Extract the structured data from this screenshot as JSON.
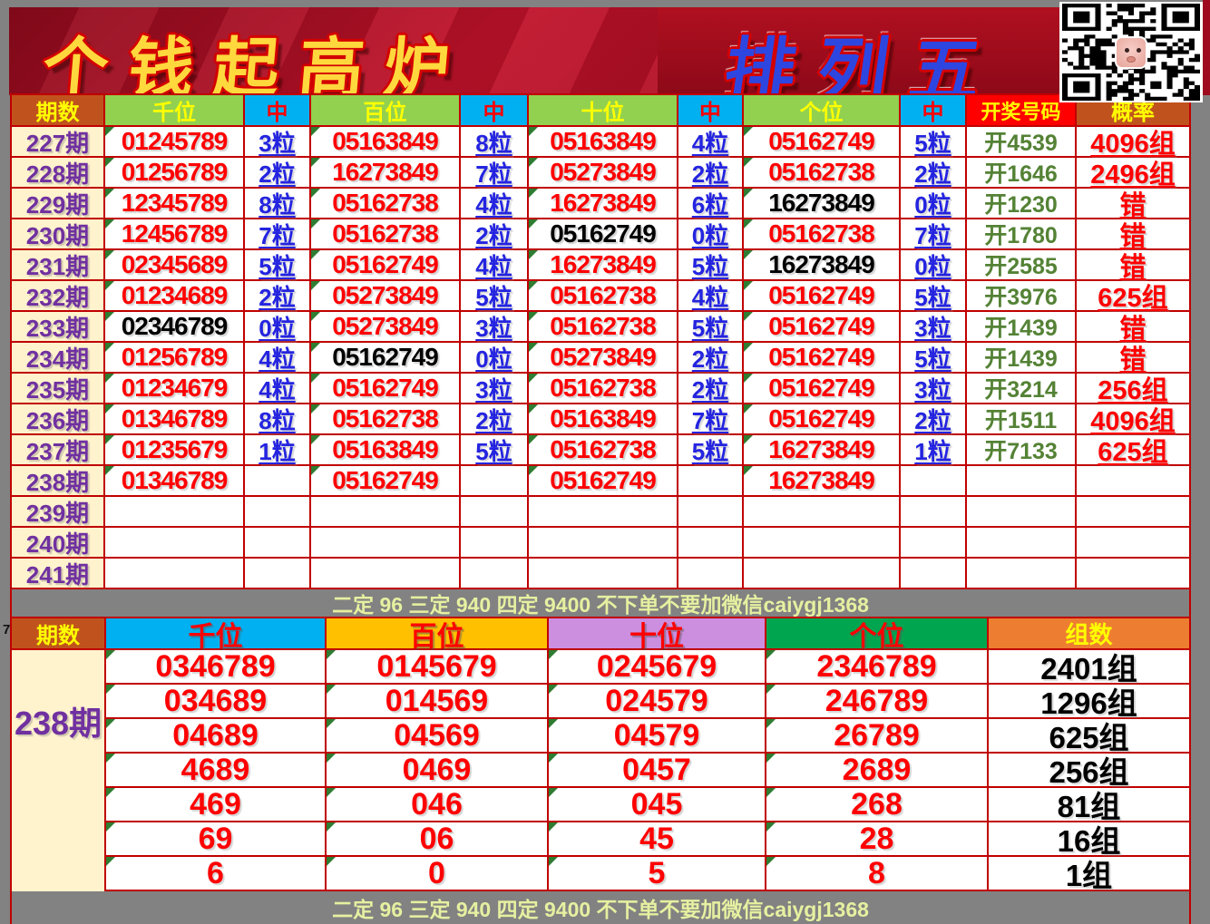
{
  "banner": {
    "title_left": "个钱起高炉",
    "title_right": "排列五"
  },
  "margin_row_number": "7",
  "promo_text": "二定 96 三定 940 四定 9400 不下单不要加微信caiygj1368",
  "colors": {
    "page_bg": "#828282",
    "banner_red": "#c0122a",
    "grid_border": "#c00000",
    "header_green": "#92d050",
    "header_blue": "#00b0f0",
    "header_brown": "#c0531d",
    "header_red": "#ff0000",
    "header_amber": "#ffc000",
    "header_plum": "#cc8fe0",
    "header_dark_green": "#00a64f",
    "header_orange": "#ed7d31",
    "period_bg": "#fff3cd",
    "period_text": "#7030a0",
    "number_red": "#ff0000",
    "number_black": "#000000",
    "hit_blue": "#2424e0",
    "draw_green": "#548235",
    "promo_text_color": "#e6f0a0"
  },
  "chart_data": [
    {
      "type": "table",
      "columns": [
        "期数",
        "千位",
        "中",
        "百位",
        "中",
        "十位",
        "中",
        "个位",
        "中",
        "开奖号码",
        "概率"
      ],
      "rows": [
        {
          "p": "227期",
          "c": [
            "01245789",
            "3粒",
            "05163849",
            "8粒",
            "05163849",
            "4粒",
            "05162749",
            "5粒",
            "开4539",
            "4096组"
          ],
          "k": "rhrhrhrhdp"
        },
        {
          "p": "228期",
          "c": [
            "01256789",
            "2粒",
            "16273849",
            "7粒",
            "05273849",
            "2粒",
            "05162738",
            "2粒",
            "开1646",
            "2496组"
          ],
          "k": "rhrhrhrhdp"
        },
        {
          "p": "229期",
          "c": [
            "12345789",
            "8粒",
            "05162738",
            "4粒",
            "16273849",
            "6粒",
            "16273849",
            "0粒",
            "开1230",
            "错"
          ],
          "k": "rhrhrhbhdp"
        },
        {
          "p": "230期",
          "c": [
            "12456789",
            "7粒",
            "05162738",
            "2粒",
            "05162749",
            "0粒",
            "05162738",
            "7粒",
            "开1780",
            "错"
          ],
          "k": "rhrhbhrhdp"
        },
        {
          "p": "231期",
          "c": [
            "02345689",
            "5粒",
            "05162749",
            "4粒",
            "16273849",
            "5粒",
            "16273849",
            "0粒",
            "开2585",
            "错"
          ],
          "k": "rhrhrhbhdp"
        },
        {
          "p": "232期",
          "c": [
            "01234689",
            "2粒",
            "05273849",
            "5粒",
            "05162738",
            "4粒",
            "05162749",
            "5粒",
            "开3976",
            "625组"
          ],
          "k": "rhrhrhrhdp"
        },
        {
          "p": "233期",
          "c": [
            "02346789",
            "0粒",
            "05273849",
            "3粒",
            "05162738",
            "5粒",
            "05162749",
            "3粒",
            "开1439",
            "错"
          ],
          "k": "bhrhrhrhdp"
        },
        {
          "p": "234期",
          "c": [
            "01256789",
            "4粒",
            "05162749",
            "0粒",
            "05273849",
            "2粒",
            "05162749",
            "5粒",
            "开1439",
            "错"
          ],
          "k": "rhbhrhrhdp"
        },
        {
          "p": "235期",
          "c": [
            "01234679",
            "4粒",
            "05162749",
            "3粒",
            "05162738",
            "2粒",
            "05162749",
            "3粒",
            "开3214",
            "256组"
          ],
          "k": "rhrhrhrhdp"
        },
        {
          "p": "236期",
          "c": [
            "01346789",
            "8粒",
            "05162738",
            "2粒",
            "05163849",
            "7粒",
            "05162749",
            "2粒",
            "开1511",
            "4096组"
          ],
          "k": "rhrhrhrhdp"
        },
        {
          "p": "237期",
          "c": [
            "01235679",
            "1粒",
            "05163849",
            "5粒",
            "05162738",
            "5粒",
            "16273849",
            "1粒",
            "开7133",
            "625组"
          ],
          "k": "rhrhrhrhdp"
        },
        {
          "p": "238期",
          "c": [
            "01346789",
            "",
            "05162749",
            "",
            "05162749",
            "",
            "16273849",
            "",
            "",
            ""
          ],
          "k": "rererereee"
        },
        {
          "p": "239期",
          "c": [
            "",
            "",
            "",
            "",
            "",
            "",
            "",
            "",
            "",
            ""
          ],
          "k": "eeeeeeeeee"
        },
        {
          "p": "240期",
          "c": [
            "",
            "",
            "",
            "",
            "",
            "",
            "",
            "",
            "",
            ""
          ],
          "k": "eeeeeeeeee"
        },
        {
          "p": "241期",
          "c": [
            "",
            "",
            "",
            "",
            "",
            "",
            "",
            "",
            "",
            ""
          ],
          "k": "eeeeeeeeee"
        }
      ]
    },
    {
      "type": "table",
      "columns": [
        "期数",
        "千位",
        "百位",
        "十位",
        "个位",
        "组数"
      ],
      "period": "238期",
      "rows": [
        [
          "0346789",
          "0145679",
          "0245679",
          "2346789",
          "2401组"
        ],
        [
          "034689",
          "014569",
          "024579",
          "246789",
          "1296组"
        ],
        [
          "04689",
          "04569",
          "04579",
          "26789",
          "625组"
        ],
        [
          "4689",
          "0469",
          "0457",
          "2689",
          "256组"
        ],
        [
          "469",
          "046",
          "045",
          "268",
          "81组"
        ],
        [
          "69",
          "06",
          "45",
          "28",
          "16组"
        ],
        [
          "6",
          "0",
          "5",
          "8",
          "1组"
        ]
      ]
    }
  ]
}
